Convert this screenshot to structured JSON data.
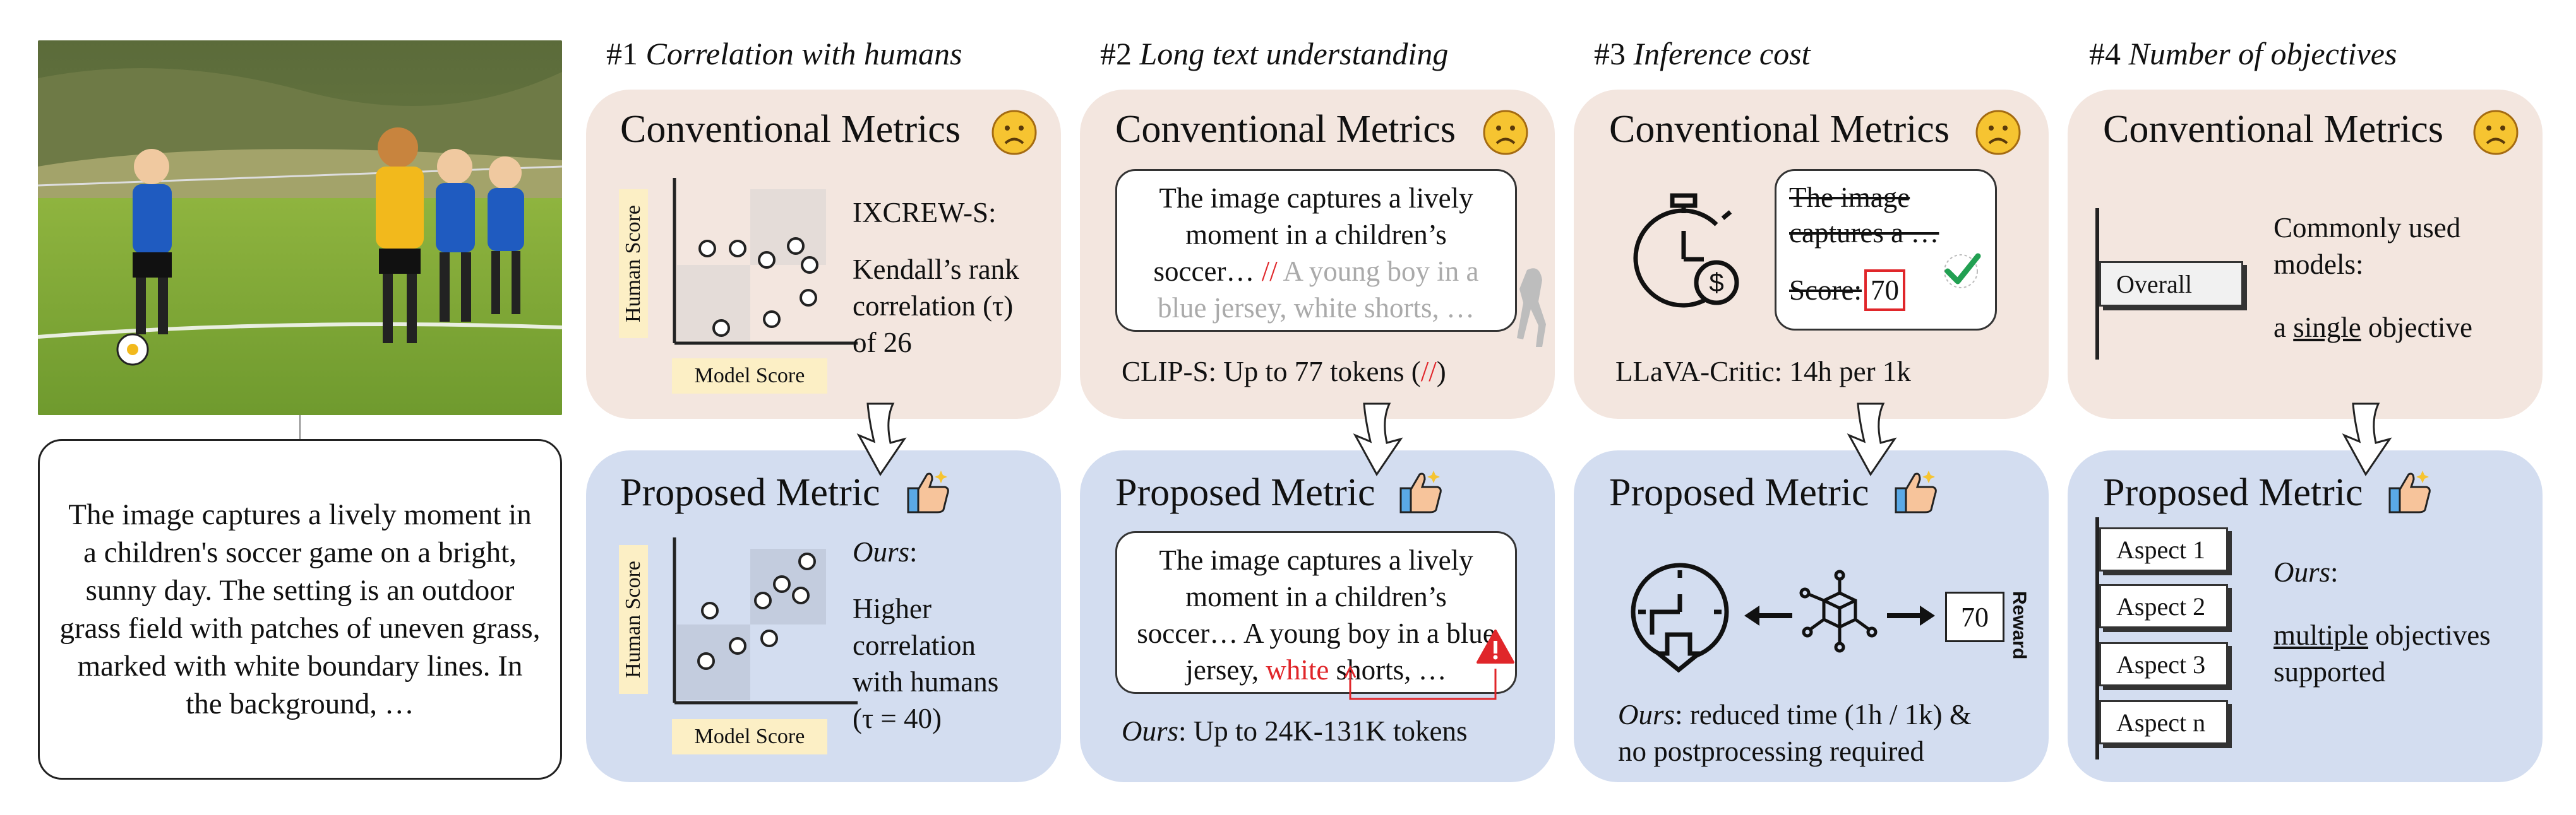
{
  "caption": "The image captures a lively moment in a children's soccer game on a bright, sunny day. The setting is an outdoor grass field with patches of uneven grass, marked with white boundary lines. In the background, …",
  "columns": [
    {
      "num": "#1",
      "title": "Correlation with humans"
    },
    {
      "num": "#2",
      "title": "Long text understanding"
    },
    {
      "num": "#3",
      "title": "Inference cost"
    },
    {
      "num": "#4",
      "title": "Number of objectives"
    }
  ],
  "conventional_title": "Conventional Metrics",
  "proposed_title": "Proposed Metric",
  "axis": {
    "y": "Human Score",
    "x": "Model Score"
  },
  "c1": {
    "conv_lines": [
      "IXCREW-S:",
      "Kendall’s rank",
      "correlation (τ)",
      "of 26"
    ],
    "prop_ours": "Ours",
    "prop_lines": [
      "Higher",
      "correlation",
      "with humans",
      "(τ = 40)"
    ]
  },
  "c2": {
    "conv_text_a": "The image captures a lively moment in a children’s soccer… ",
    "conv_slash": "//",
    "conv_text_b": " A young boy in a blue jersey, white shorts, …",
    "conv_note": "CLIP-S: Up to 77 tokens (",
    "conv_note_slash": "//",
    "conv_note_end": ")",
    "prop_text_a": "The image captures a lively moment in a children’s soccer… A young boy in a blue jersey, ",
    "prop_red": "white",
    "prop_text_b": " shorts, …",
    "prop_ours": "Ours",
    "prop_note": ": Up to 24K-131K tokens"
  },
  "c3": {
    "strike_text": "The image captures a …",
    "score_label": "Score:",
    "score_value": "70",
    "conv_note": "LLaVA-Critic: 14h per 1k",
    "reward_value": "70",
    "reward_label": "Reward",
    "prop_ours": "Ours",
    "prop_note_a": ": reduced time (1h / 1k) &",
    "prop_note_b": "no postprocessing required"
  },
  "c4": {
    "overall": "Overall",
    "conv_lines": [
      "Commonly used",
      "models:"
    ],
    "conv_single_pre": "a ",
    "conv_single": "single",
    "conv_single_post": " objective",
    "aspects": [
      "Aspect 1",
      "Aspect 2",
      "Aspect 3",
      "Aspect n"
    ],
    "prop_ours": "Ours",
    "prop_multiple": "multiple",
    "prop_rest": " objectives",
    "prop_supported": "supported"
  },
  "colors": {
    "conv_bg": "#f3e6df",
    "prop_bg": "#d3ddf0",
    "label_bg": "#fcefc5",
    "red": "#e0262a"
  }
}
